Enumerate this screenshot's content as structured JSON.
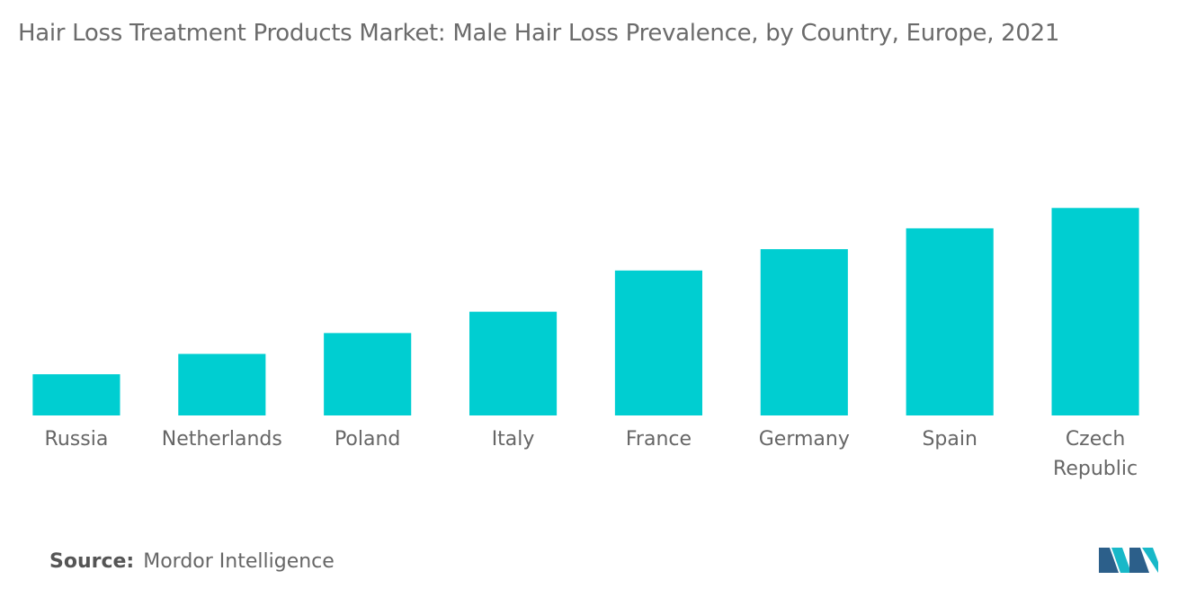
{
  "chart_data": {
    "type": "bar",
    "title": "Hair Loss Treatment Products Market: Male Hair Loss Prevalence, by Country, Europe, 2021",
    "categories": [
      "Russia",
      "Netherlands",
      "Poland",
      "Italy",
      "France",
      "Germany",
      "Spain",
      "Czech Republic"
    ],
    "values": [
      8.3,
      12.4,
      16.6,
      20.9,
      29.2,
      33.5,
      37.7,
      41.8
    ],
    "color": "#00ced1",
    "ylim": [
      0,
      50
    ],
    "grid": false
  },
  "source": {
    "label": "Source:",
    "text": "Mordor Intelligence"
  }
}
